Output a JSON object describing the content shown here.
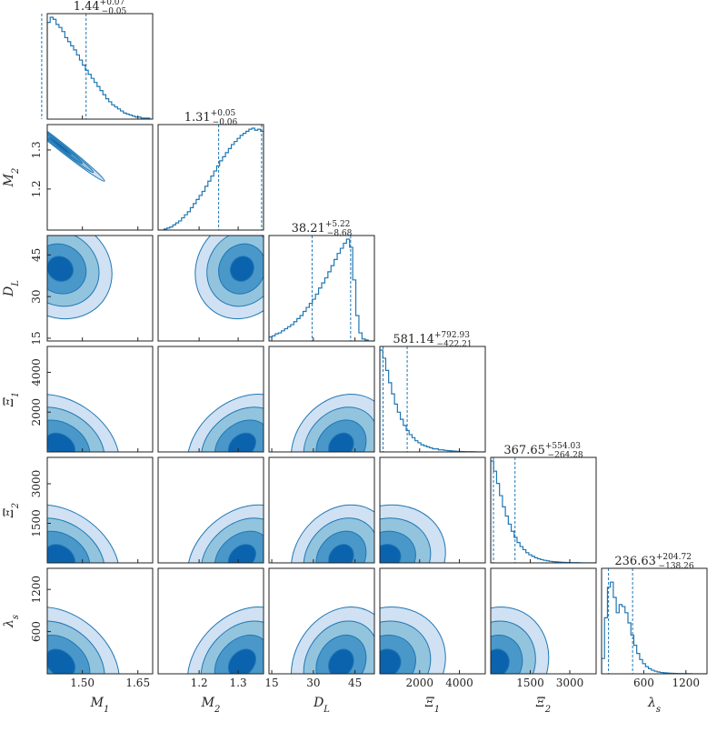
{
  "chart_data": {
    "type": "corner",
    "color": "#1f77b4",
    "contour_fill_colors": [
      "#cfe1f2",
      "#93c4de",
      "#4a98c9",
      "#0b63ad"
    ],
    "parameters": [
      {
        "label": "M",
        "sub": "1",
        "range": [
          1.405,
          1.69
        ],
        "ticks": [
          1.5,
          1.65
        ],
        "tick_labels": [
          "1.50",
          "1.65"
        ],
        "median": 1.44,
        "plus": "0.07",
        "minus": "0.05",
        "q_low": 1.39,
        "q_high": 1.51,
        "hist": [
          0.95,
          1.0,
          0.98,
          0.93,
          0.9,
          0.86,
          0.8,
          0.76,
          0.72,
          0.68,
          0.63,
          0.58,
          0.53,
          0.48,
          0.44,
          0.4,
          0.36,
          0.32,
          0.28,
          0.24,
          0.2,
          0.17,
          0.14,
          0.12,
          0.1,
          0.08,
          0.06,
          0.05,
          0.04,
          0.03,
          0.02,
          0.02,
          0.01,
          0.01,
          0.01,
          0.0
        ]
      },
      {
        "label": "M",
        "sub": "2",
        "range": [
          1.095,
          1.365
        ],
        "ticks": [
          1.2,
          1.3
        ],
        "tick_labels": [
          "1.2",
          "1.3"
        ],
        "median": 1.31,
        "plus": "0.05",
        "minus": "0.06",
        "q_low": 1.25,
        "q_high": 1.36,
        "hist": [
          0.0,
          0.0,
          0.01,
          0.02,
          0.03,
          0.05,
          0.07,
          0.09,
          0.12,
          0.15,
          0.18,
          0.22,
          0.26,
          0.3,
          0.34,
          0.38,
          0.43,
          0.48,
          0.53,
          0.58,
          0.63,
          0.68,
          0.72,
          0.76,
          0.8,
          0.84,
          0.87,
          0.9,
          0.93,
          0.95,
          0.97,
          0.99,
          1.0,
          0.98,
          0.99,
          0.97
        ]
      },
      {
        "label": "D",
        "sub": "L",
        "range": [
          14,
          52
        ],
        "ticks": [
          15,
          30,
          45
        ],
        "tick_labels": [
          "15",
          "30",
          "45"
        ],
        "median": 38.21,
        "plus": "5.22",
        "minus": "8.68",
        "q_low": 29.53,
        "q_high": 43.43,
        "hist": [
          0.04,
          0.05,
          0.07,
          0.08,
          0.1,
          0.12,
          0.14,
          0.16,
          0.19,
          0.22,
          0.25,
          0.29,
          0.33,
          0.37,
          0.41,
          0.46,
          0.52,
          0.57,
          0.62,
          0.68,
          0.74,
          0.8,
          0.86,
          0.91,
          0.96,
          1.0,
          0.92,
          0.6,
          0.25,
          0.08,
          0.02,
          0.01,
          0.0,
          0.0
        ]
      },
      {
        "label": "Ξ",
        "sub": "1",
        "range": [
          0,
          5300
        ],
        "ticks": [
          2000,
          4000
        ],
        "tick_labels": [
          "2000",
          "4000"
        ],
        "median": 581.14,
        "plus": "792.93",
        "minus": "422.21",
        "q_low": 158.93,
        "q_high": 1374.07,
        "hist": [
          1.0,
          0.92,
          0.8,
          0.68,
          0.57,
          0.47,
          0.39,
          0.32,
          0.26,
          0.21,
          0.17,
          0.14,
          0.11,
          0.09,
          0.07,
          0.06,
          0.05,
          0.04,
          0.03,
          0.03,
          0.02,
          0.02,
          0.015,
          0.012,
          0.01,
          0.008,
          0.006,
          0.005,
          0.004,
          0.003,
          0.002,
          0.002,
          0.001,
          0.0,
          0.0,
          0.0
        ]
      },
      {
        "label": "Ξ",
        "sub": "2",
        "range": [
          0,
          4000
        ],
        "ticks": [
          1500,
          3000
        ],
        "tick_labels": [
          "1500",
          "3000"
        ],
        "median": 367.65,
        "plus": "554.03",
        "minus": "264.28",
        "q_low": 103.37,
        "q_high": 921.68,
        "hist": [
          1.0,
          0.9,
          0.78,
          0.66,
          0.55,
          0.46,
          0.38,
          0.31,
          0.25,
          0.2,
          0.16,
          0.13,
          0.1,
          0.08,
          0.065,
          0.05,
          0.04,
          0.032,
          0.025,
          0.02,
          0.015,
          0.012,
          0.01,
          0.008,
          0.006,
          0.005,
          0.004,
          0.003,
          0.002,
          0.002,
          0.001,
          0.0,
          0.0,
          0.0,
          0.0,
          0.0
        ]
      },
      {
        "label": "λ",
        "sub": "s",
        "range": [
          0,
          1500
        ],
        "ticks": [
          600,
          1200
        ],
        "tick_labels": [
          "600",
          "1200"
        ],
        "median": 236.63,
        "plus": "204.72",
        "minus": "138.26",
        "q_low": 98.37,
        "q_high": 441.35,
        "hist": [
          0.15,
          0.55,
          0.85,
          0.9,
          0.75,
          0.6,
          0.68,
          0.66,
          0.6,
          0.5,
          0.38,
          0.28,
          0.2,
          0.14,
          0.1,
          0.07,
          0.05,
          0.035,
          0.025,
          0.018,
          0.013,
          0.01,
          0.008,
          0.006,
          0.005,
          0.004,
          0.003,
          0.002,
          0.002,
          0.001,
          0.001,
          0.0,
          0.0,
          0.0,
          0.0,
          0.0
        ]
      }
    ],
    "contours": [
      {
        "row": 1,
        "col": 0,
        "correlation": "strong-negative",
        "mean": [
          1.44,
          1.31
        ],
        "sd": [
          0.06,
          0.045
        ],
        "rho": -0.99
      },
      {
        "row": 2,
        "col": 0,
        "mean": [
          1.44,
          40
        ],
        "sd": [
          0.07,
          9
        ],
        "rho": -0.1
      },
      {
        "row": 2,
        "col": 1,
        "mean": [
          1.31,
          40
        ],
        "sd": [
          0.06,
          9
        ],
        "rho": 0.1
      },
      {
        "row": 3,
        "col": 0,
        "mean": [
          1.44,
          300
        ],
        "sd": [
          0.08,
          1300
        ],
        "rho": -0.3
      },
      {
        "row": 3,
        "col": 1,
        "mean": [
          1.31,
          300
        ],
        "sd": [
          0.07,
          1300
        ],
        "rho": 0.3
      },
      {
        "row": 3,
        "col": 2,
        "mean": [
          40,
          300
        ],
        "sd": [
          9,
          1300
        ],
        "rho": 0.2
      },
      {
        "row": 4,
        "col": 0,
        "mean": [
          1.44,
          200
        ],
        "sd": [
          0.08,
          1000
        ],
        "rho": -0.3
      },
      {
        "row": 4,
        "col": 1,
        "mean": [
          1.31,
          200
        ],
        "sd": [
          0.07,
          1000
        ],
        "rho": 0.3
      },
      {
        "row": 4,
        "col": 2,
        "mean": [
          40,
          200
        ],
        "sd": [
          9,
          1000
        ],
        "rho": 0.2
      },
      {
        "row": 4,
        "col": 3,
        "mean": [
          300,
          200
        ],
        "sd": [
          1500,
          1000
        ],
        "rho": 0.1
      },
      {
        "row": 5,
        "col": 0,
        "mean": [
          1.44,
          150
        ],
        "sd": [
          0.08,
          400
        ],
        "rho": -0.3
      },
      {
        "row": 5,
        "col": 1,
        "mean": [
          1.31,
          150
        ],
        "sd": [
          0.07,
          400
        ],
        "rho": 0.3
      },
      {
        "row": 5,
        "col": 2,
        "mean": [
          40,
          150
        ],
        "sd": [
          9,
          400
        ],
        "rho": 0.2
      },
      {
        "row": 5,
        "col": 3,
        "mean": [
          300,
          150
        ],
        "sd": [
          1500,
          400
        ],
        "rho": 0.1
      },
      {
        "row": 5,
        "col": 4,
        "mean": [
          200,
          150
        ],
        "sd": [
          1000,
          400
        ],
        "rho": 0.1
      }
    ]
  }
}
